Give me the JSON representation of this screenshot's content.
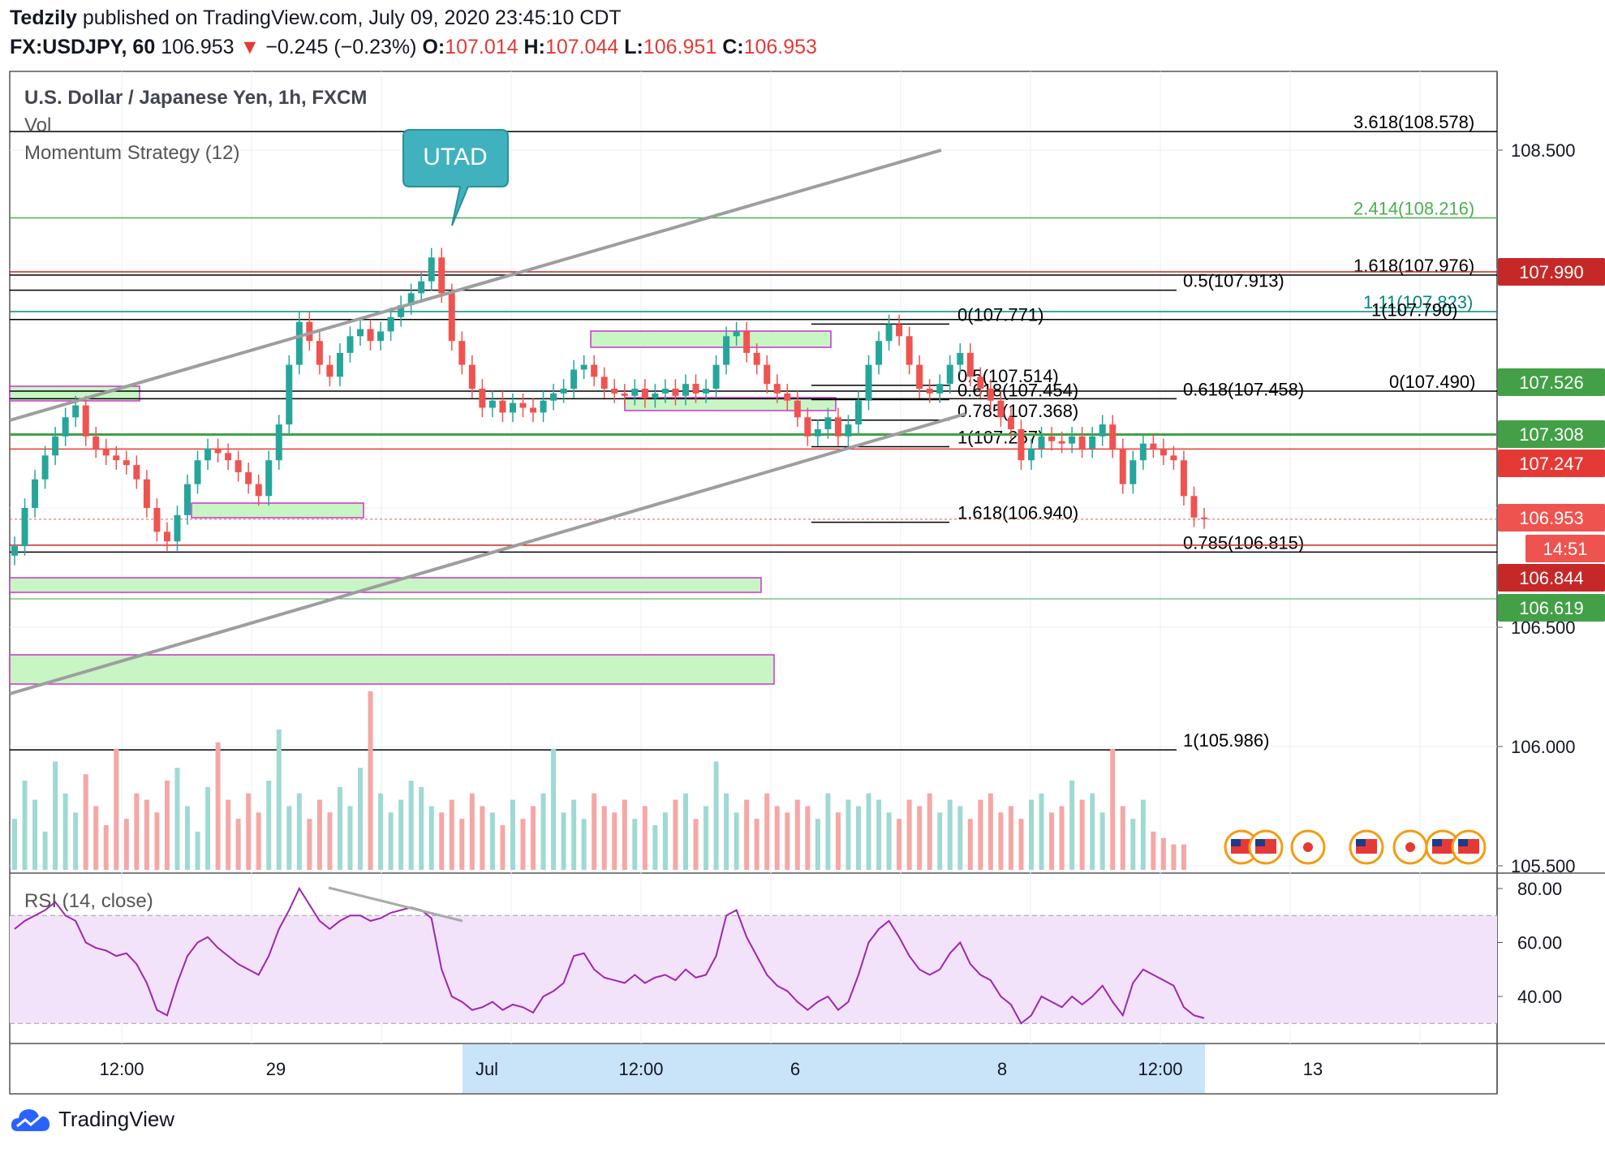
{
  "header": {
    "author": "Tedzily",
    "published": "published on TradingView.com, July 09, 2020 23:45:10 CDT",
    "symbol": "FX:USDJPY, 60",
    "last": "106.953",
    "change": "−0.245 (−0.23%)",
    "o_label": "O:",
    "o": "107.014",
    "h_label": "H:",
    "h": "107.044",
    "l_label": "L:",
    "l": "106.951",
    "c_label": "C:",
    "c": "106.953"
  },
  "legend": {
    "title": "U.S. Dollar / Japanese Yen, 1h, FXCM",
    "vol": "Vol",
    "momentum": "Momentum Strategy (12)",
    "rsi": "RSI (14, close)"
  },
  "annotation": {
    "text": "UTAD",
    "color": "#3fb2bd"
  },
  "footer": {
    "brand": "TradingView"
  },
  "colors": {
    "up": "#26a69a",
    "down": "#ef5350",
    "rsi": "#9c27b0",
    "rsi_band": "#f3e3fa",
    "green_zone": "#c8f5c4",
    "zone_border": "#cc33cc",
    "time_highlight": "#c9e3f9"
  },
  "chart_data": [
    {
      "type": "candlestick",
      "title": "U.S. Dollar / Japanese Yen, 1h, FXCM",
      "ylim": [
        105.45,
        108.7
      ],
      "y_ticks": [
        "108.500",
        "106.500",
        "106.000",
        "105.500"
      ],
      "x_ticks": [
        "12:00",
        "29",
        "Jul",
        "12:00",
        "6",
        "8",
        "12:00",
        "13"
      ],
      "price_labels": [
        {
          "text": "107.990",
          "color": "#c62828"
        },
        {
          "text": "107.526",
          "color": "#43a047"
        },
        {
          "text": "107.308",
          "color": "#43a047"
        },
        {
          "text": "107.247",
          "color": "#e53935"
        },
        {
          "text": "106.953",
          "color": "#ef5350"
        },
        {
          "text": "14:51",
          "color": "#ef5350"
        },
        {
          "text": "106.844",
          "color": "#c62828"
        },
        {
          "text": "106.619",
          "color": "#43a047"
        }
      ],
      "level_labels": [
        {
          "text": "3.618(108.578)",
          "value": 108.578,
          "color": "#000000"
        },
        {
          "text": "2.414(108.216)",
          "value": 108.216,
          "color": "#4caf50"
        },
        {
          "text": "1.618(107.976)",
          "value": 107.976,
          "color": "#000000"
        },
        {
          "text": "0.5(107.913)",
          "value": 107.913,
          "color": "#000000"
        },
        {
          "text": "1.11(107.823)",
          "value": 107.823,
          "color": "#00897b"
        },
        {
          "text": "1(107.790)",
          "value": 107.79,
          "color": "#000000"
        },
        {
          "text": "0(107.771)",
          "value": 107.771,
          "color": "#000000"
        },
        {
          "text": "0.618(107.458)",
          "value": 107.458,
          "color": "#000000"
        },
        {
          "text": "0.5(107.514)",
          "value": 107.514,
          "color": "#000000"
        },
        {
          "text": "0.618(107.454)",
          "value": 107.454,
          "color": "#000000"
        },
        {
          "text": "0(107.490)",
          "value": 107.49,
          "color": "#000000"
        },
        {
          "text": "0.785(107.368)",
          "value": 107.368,
          "color": "#000000"
        },
        {
          "text": "1(107.257)",
          "value": 107.257,
          "color": "#000000"
        },
        {
          "text": "1.618(106.940)",
          "value": 106.94,
          "color": "#000000"
        },
        {
          "text": "0.785(106.815)",
          "value": 106.815,
          "color": "#000000"
        },
        {
          "text": "1(105.986)",
          "value": 105.986,
          "color": "#000000"
        }
      ],
      "annotations": [
        "UTAD"
      ],
      "close_series": [
        106.84,
        107.0,
        107.12,
        107.22,
        107.3,
        107.38,
        107.43,
        107.3,
        107.25,
        107.22,
        107.2,
        107.18,
        107.12,
        107.0,
        106.9,
        106.86,
        106.97,
        107.1,
        107.2,
        107.25,
        107.23,
        107.2,
        107.15,
        107.1,
        107.05,
        107.2,
        107.35,
        107.6,
        107.78,
        107.7,
        107.6,
        107.55,
        107.65,
        107.72,
        107.75,
        107.7,
        107.74,
        107.8,
        107.85,
        107.9,
        107.95,
        108.05,
        107.9,
        107.7,
        107.6,
        107.5,
        107.42,
        107.45,
        107.4,
        107.44,
        107.42,
        107.4,
        107.45,
        107.48,
        107.5,
        107.58,
        107.6,
        107.55,
        107.5,
        107.48,
        107.47,
        107.5,
        107.46,
        107.48,
        107.5,
        107.47,
        107.52,
        107.48,
        107.5,
        107.6,
        107.72,
        107.74,
        107.65,
        107.6,
        107.52,
        107.48,
        107.45,
        107.38,
        107.3,
        107.33,
        107.38,
        107.3,
        107.35,
        107.45,
        107.6,
        107.7,
        107.77,
        107.72,
        107.6,
        107.5,
        107.48,
        107.52,
        107.6,
        107.65,
        107.55,
        107.5,
        107.45,
        107.38,
        107.33,
        107.2,
        107.25,
        107.3,
        107.28,
        107.27,
        107.3,
        107.25,
        107.3,
        107.35,
        107.25,
        107.1,
        107.2,
        107.27,
        107.25,
        107.22,
        107.2,
        107.05,
        106.96,
        106.953
      ]
    },
    {
      "type": "bar",
      "title": "Vol",
      "values": [
        40,
        70,
        55,
        30,
        85,
        60,
        45,
        75,
        50,
        35,
        95,
        40,
        60,
        55,
        45,
        70,
        80,
        50,
        30,
        65,
        100,
        55,
        40,
        60,
        45,
        70,
        110,
        50,
        60,
        40,
        55,
        45,
        65,
        50,
        80,
        140,
        60,
        45,
        55,
        70,
        65,
        50,
        45,
        55,
        40,
        60,
        50,
        45,
        35,
        55,
        40,
        50,
        60,
        95,
        45,
        55,
        40,
        60,
        50,
        45,
        55,
        40,
        50,
        35,
        45,
        55,
        60,
        40,
        50,
        85,
        60,
        45,
        55,
        40,
        60,
        50,
        45,
        55,
        50,
        40,
        60,
        45,
        55,
        50,
        60,
        55,
        45,
        40,
        55,
        50,
        60,
        45,
        55,
        50,
        40,
        55,
        60,
        45,
        50,
        40,
        55,
        60,
        45,
        50,
        70,
        55,
        60,
        45,
        95,
        50,
        40,
        55,
        30,
        25,
        20,
        20
      ]
    },
    {
      "type": "line",
      "title": "RSI (14, close)",
      "ylim": [
        26,
        84
      ],
      "y_ticks": [
        "80.00",
        "60.00",
        "40.00"
      ],
      "bands": [
        30,
        70
      ],
      "values": [
        65,
        68,
        70,
        72,
        75,
        70,
        68,
        60,
        58,
        57,
        55,
        56,
        52,
        45,
        35,
        33,
        45,
        55,
        60,
        62,
        58,
        55,
        52,
        50,
        48,
        55,
        65,
        72,
        80,
        74,
        68,
        65,
        68,
        70,
        70,
        68,
        69,
        71,
        72,
        73,
        72,
        69,
        50,
        40,
        38,
        35,
        36,
        38,
        35,
        37,
        36,
        34,
        40,
        42,
        45,
        55,
        56,
        50,
        47,
        46,
        45,
        48,
        45,
        47,
        48,
        46,
        50,
        47,
        48,
        55,
        70,
        72,
        62,
        55,
        48,
        44,
        42,
        38,
        35,
        38,
        40,
        35,
        38,
        48,
        60,
        65,
        68,
        62,
        55,
        50,
        48,
        50,
        56,
        60,
        52,
        48,
        46,
        40,
        37,
        30,
        33,
        40,
        38,
        36,
        40,
        37,
        40,
        44,
        38,
        33,
        45,
        50,
        48,
        46,
        44,
        36,
        33,
        32
      ]
    }
  ]
}
